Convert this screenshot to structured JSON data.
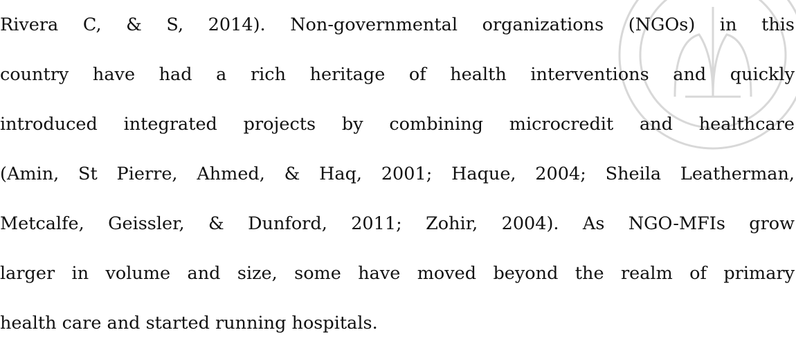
{
  "paragraph": {
    "lines": [
      "Rivera C, & S, 2014). Non-governmental organizations (NGOs) in this",
      "country have had a rich heritage of health interventions and quickly",
      "introduced integrated projects by combining microcredit and healthcare",
      "(Amin, St Pierre, Ahmed, & Haq, 2001; Haque, 2004; Sheila Leatherman,",
      "Metcalfe, Geissler, & Dunford, 2011; Zohir, 2004). As NGO-MFIs grow",
      "larger in volume and size, some have moved beyond the realm of primary",
      "health care and started running hospitals."
    ]
  }
}
